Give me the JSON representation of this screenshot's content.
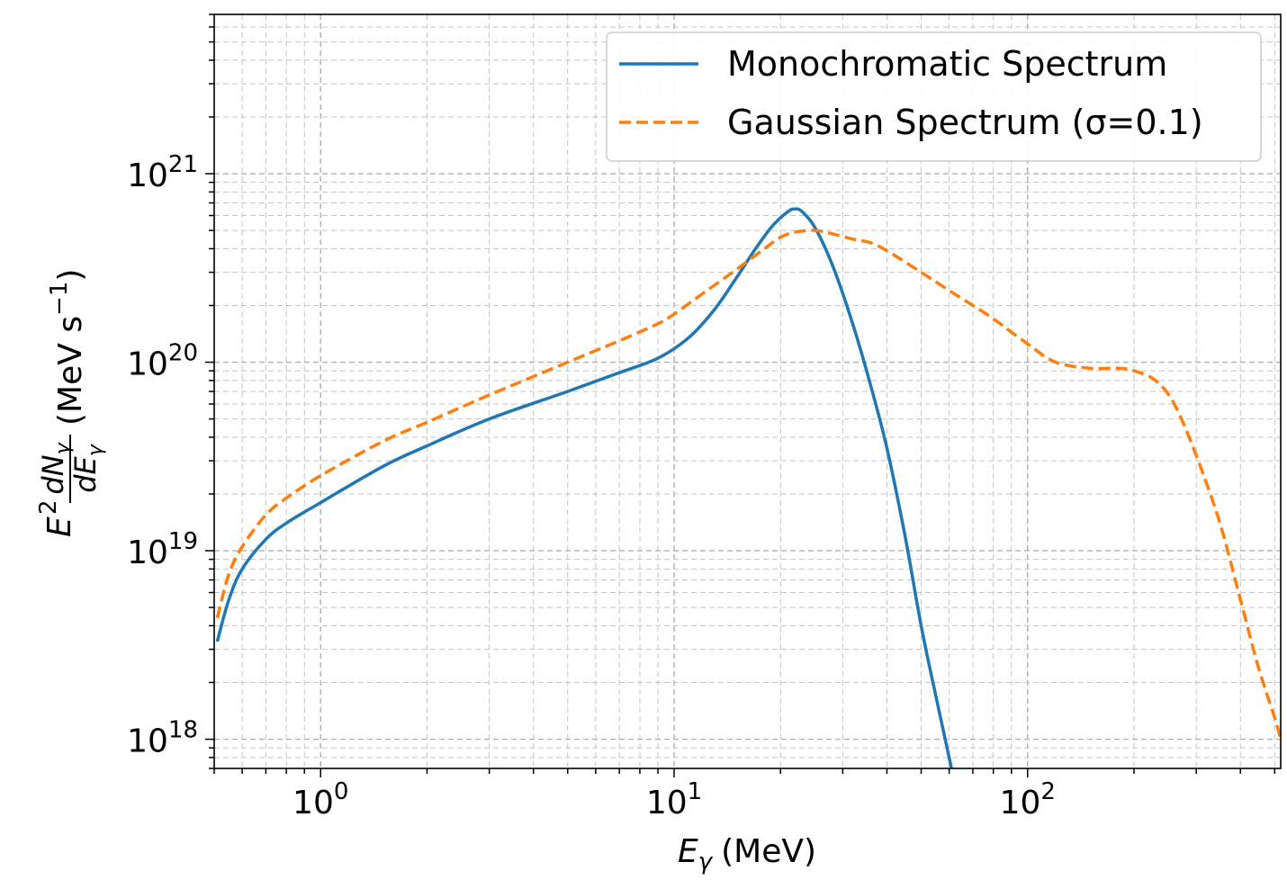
{
  "chart_data": {
    "type": "line",
    "title": "",
    "xlabel": {
      "symbol": "E",
      "subscript": "γ",
      "unit": "(MeV)"
    },
    "ylabel": {
      "prefix": "E",
      "prefix_sup": "2",
      "num": "dN",
      "num_sub": "γ",
      "den": "dE",
      "den_sub": "γ",
      "unit": "(MeV s",
      "unit_sup": "−1",
      "unit_close": ")"
    },
    "x_scale": "log",
    "y_scale": "log",
    "xlim": [
      0.5,
      520
    ],
    "ylim": [
      7e+17,
      7e+21
    ],
    "grid": true,
    "grid_minor": true,
    "legend_position": "top-right",
    "x_ticks": [
      {
        "value": 1,
        "base": "10",
        "exp": "0"
      },
      {
        "value": 10,
        "base": "10",
        "exp": "1"
      },
      {
        "value": 100,
        "base": "10",
        "exp": "2"
      }
    ],
    "y_ticks": [
      {
        "value": 1e+18,
        "base": "10",
        "exp": "18"
      },
      {
        "value": 1e+19,
        "base": "10",
        "exp": "19"
      },
      {
        "value": 1e+20,
        "base": "10",
        "exp": "20"
      },
      {
        "value": 1e+21,
        "base": "10",
        "exp": "21"
      }
    ],
    "series": [
      {
        "name": "Monochromatic Spectrum",
        "color": "#1f77b4",
        "style": "solid",
        "x": [
          0.51,
          0.55,
          0.6,
          0.7,
          0.8,
          1.0,
          1.5,
          2,
          3,
          5,
          7,
          9,
          11,
          13,
          15,
          17,
          19,
          21,
          22,
          23,
          25,
          28,
          32,
          36,
          40,
          45,
          50,
          55,
          60,
          62
        ],
        "y": [
          3.3e+18,
          5.5e+18,
          8e+18,
          1.15e+19,
          1.4e+19,
          1.8e+19,
          2.8e+19,
          3.6e+19,
          5e+19,
          7e+19,
          8.8e+19,
          1.05e+20,
          1.35e+20,
          1.9e+20,
          2.8e+20,
          4e+20,
          5.3e+20,
          6.3e+20,
          6.5e+20,
          6.3e+20,
          5.2e+20,
          3.3e+20,
          1.6e+20,
          7.5e+19,
          3.5e+19,
          1.2e+19,
          4e+18,
          1.7e+18,
          8e+17,
          6e+17
        ]
      },
      {
        "name": "Gaussian Spectrum (σ=0.1)",
        "color": "#ff7f0e",
        "style": "dashed",
        "x": [
          0.51,
          0.55,
          0.6,
          0.7,
          0.8,
          1.0,
          1.5,
          2,
          3,
          5,
          7,
          9,
          10,
          12,
          15,
          18,
          20,
          22,
          25,
          28,
          32,
          36,
          40,
          50,
          60,
          70,
          80,
          100,
          120,
          150,
          180,
          200,
          230,
          260,
          300,
          350,
          400,
          450,
          500,
          520
        ],
        "y": [
          4.4e+18,
          7.5e+18,
          1.05e+19,
          1.55e+19,
          1.9e+19,
          2.5e+19,
          3.8e+19,
          4.8e+19,
          6.7e+19,
          1e+20,
          1.3e+20,
          1.6e+20,
          1.8e+20,
          2.3e+20,
          3.1e+20,
          4e+20,
          4.6e+20,
          4.9e+20,
          5e+20,
          4.8e+20,
          4.5e+20,
          4.3e+20,
          3.9e+20,
          3e+20,
          2.4e+20,
          2e+20,
          1.7e+20,
          1.25e+20,
          1e+20,
          9.3e+19,
          9.3e+19,
          9e+19,
          8e+19,
          6e+19,
          3.2e+19,
          1.4e+19,
          5.5e+18,
          2.4e+18,
          1.3e+18,
          1e+18
        ]
      }
    ]
  }
}
